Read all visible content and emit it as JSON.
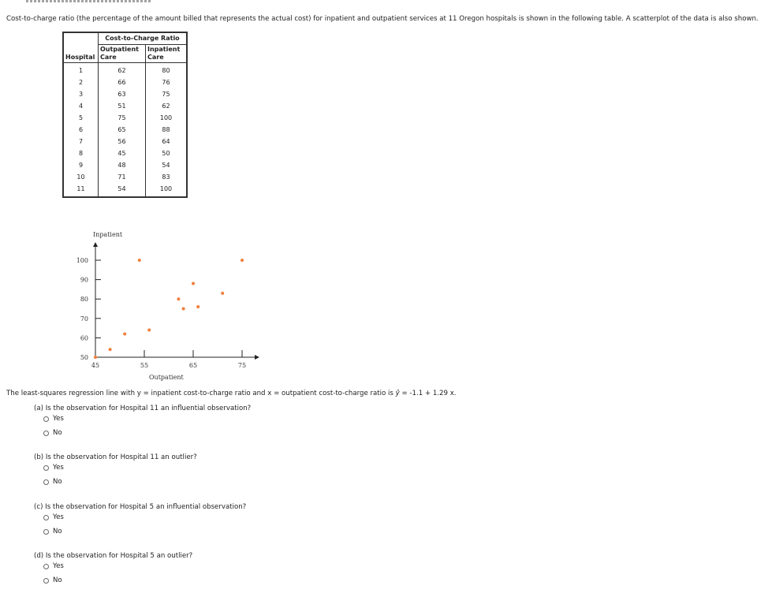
{
  "intro": "Cost-to-charge ratio (the percentage of the amount billed that represents the actual cost) for inpatient and outpatient services at 11 Oregon hospitals is shown in the following table. A scatterplot of the data is also shown.",
  "table": {
    "group_header": "Cost-to-Charge Ratio",
    "col_hospital": "Hospital",
    "col_outpatient_line1": "Outpatient",
    "col_outpatient_line2": "Care",
    "col_inpatient_line1": "Inpatient",
    "col_inpatient_line2": "Care",
    "rows": [
      {
        "hospital": "1",
        "outpatient": "62",
        "inpatient": "80"
      },
      {
        "hospital": "2",
        "outpatient": "66",
        "inpatient": "76"
      },
      {
        "hospital": "3",
        "outpatient": "63",
        "inpatient": "75"
      },
      {
        "hospital": "4",
        "outpatient": "51",
        "inpatient": "62"
      },
      {
        "hospital": "5",
        "outpatient": "75",
        "inpatient": "100"
      },
      {
        "hospital": "6",
        "outpatient": "65",
        "inpatient": "88"
      },
      {
        "hospital": "7",
        "outpatient": "56",
        "inpatient": "64"
      },
      {
        "hospital": "8",
        "outpatient": "45",
        "inpatient": "50"
      },
      {
        "hospital": "9",
        "outpatient": "48",
        "inpatient": "54"
      },
      {
        "hospital": "10",
        "outpatient": "71",
        "inpatient": "83"
      },
      {
        "hospital": "11",
        "outpatient": "54",
        "inpatient": "100"
      }
    ]
  },
  "chart_data": {
    "type": "scatter",
    "xlabel": "Outpatient",
    "ylabel": "Inpatient",
    "xlim": [
      45,
      78
    ],
    "ylim": [
      50,
      100
    ],
    "xticks": [
      45,
      55,
      65,
      75
    ],
    "yticks": [
      50,
      60,
      70,
      80,
      90,
      100
    ],
    "x": [
      62,
      66,
      63,
      51,
      75,
      65,
      56,
      45,
      48,
      71,
      54
    ],
    "y": [
      80,
      76,
      75,
      62,
      100,
      88,
      64,
      50,
      54,
      83,
      100
    ],
    "point_color": "#f07f3c",
    "grid": false
  },
  "regression": {
    "text_before": "The least-squares regression line with y = inpatient cost-to-charge ratio and x = outpatient cost-to-charge ratio is ",
    "yhat": "ŷ",
    "text_after": " = -1.1 + 1.29 x."
  },
  "questions": [
    {
      "label": "(a) Is the observation for Hospital 11 an influential observation?",
      "options": [
        "Yes",
        "No"
      ]
    },
    {
      "label": "(b) Is the observation for Hospital 11 an outlier?",
      "options": [
        "Yes",
        "No"
      ]
    },
    {
      "label": "(c) Is the observation for Hospital 5 an influential observation?",
      "options": [
        "Yes",
        "No"
      ]
    },
    {
      "label": "(d) Is the observation for Hospital 5 an outlier?",
      "options": [
        "Yes",
        "No"
      ]
    }
  ]
}
